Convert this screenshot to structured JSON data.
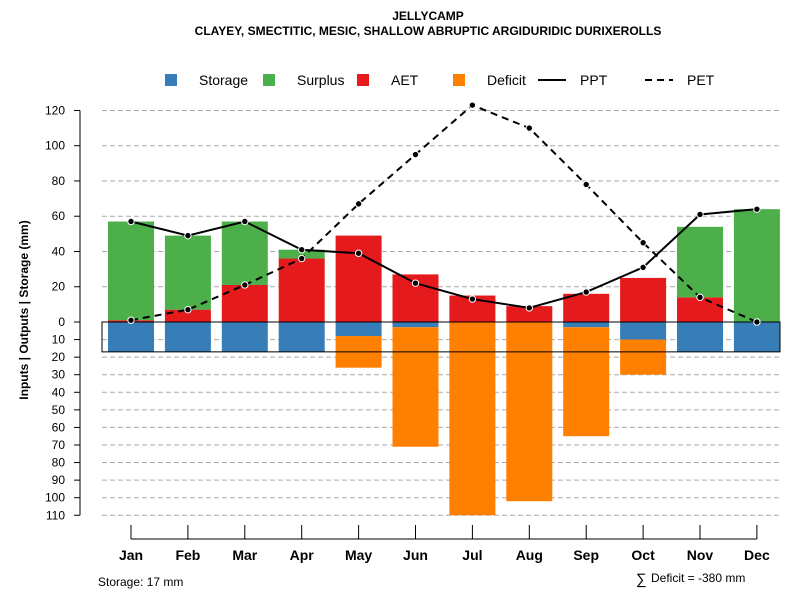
{
  "chart_data": {
    "type": "bar",
    "title": "JELLYCAMP",
    "subtitle": "CLAYEY, SMECTITIC, MESIC, SHALLOW ABRUPTIC ARGIDURIDIC DURIXEROLLS",
    "ylabel": "Inputs | Outputs | Storage    (mm)",
    "categories": [
      "Jan",
      "Feb",
      "Mar",
      "Apr",
      "May",
      "Jun",
      "Jul",
      "Aug",
      "Sep",
      "Oct",
      "Nov",
      "Dec"
    ],
    "y_ticks_up": [
      "0",
      "20",
      "40",
      "60",
      "80",
      "100",
      "120"
    ],
    "y_ticks_down": [
      "10",
      "20",
      "30",
      "40",
      "50",
      "60",
      "70",
      "80",
      "90",
      "100",
      "110"
    ],
    "ylim_up": [
      0,
      130
    ],
    "ylim_down": [
      0,
      110
    ],
    "grid": true,
    "legend": [
      {
        "label": "Storage",
        "kind": "box",
        "color": "#377EB8"
      },
      {
        "label": "Surplus",
        "kind": "box",
        "color": "#4DAF4A"
      },
      {
        "label": "AET",
        "kind": "box",
        "color": "#E41A1C"
      },
      {
        "label": "Deficit",
        "kind": "box",
        "color": "#FF7F00"
      },
      {
        "label": "PPT",
        "kind": "solid-line",
        "color": "#000000"
      },
      {
        "label": "PET",
        "kind": "dashed-line",
        "color": "#000000"
      }
    ],
    "colors": {
      "storage": "#377EB8",
      "surplus": "#4DAF4A",
      "aet": "#E41A1C",
      "deficit": "#FF7F00"
    },
    "series": [
      {
        "name": "AET",
        "values": [
          1,
          7,
          21,
          36,
          49,
          27,
          15,
          9,
          16,
          25,
          14,
          0
        ]
      },
      {
        "name": "Surplus",
        "values": [
          56,
          42,
          36,
          5,
          0,
          0,
          0,
          0,
          0,
          0,
          40,
          64
        ]
      },
      {
        "name": "Storage",
        "values": [
          17,
          17,
          17,
          17,
          8,
          3,
          0,
          0,
          3,
          10,
          17,
          17
        ]
      },
      {
        "name": "Deficit",
        "values": [
          0,
          0,
          0,
          0,
          18,
          68,
          110,
          102,
          62,
          20,
          0,
          0
        ]
      },
      {
        "name": "PPT",
        "values": [
          57,
          49,
          57,
          41,
          39,
          22,
          13,
          8,
          17,
          31,
          61,
          64
        ]
      },
      {
        "name": "PET",
        "values": [
          1,
          7,
          21,
          36,
          67,
          95,
          123,
          110,
          78,
          45,
          14,
          0
        ]
      }
    ],
    "storage_capacity": 17,
    "annotations": {
      "storage_note": "Storage: 17 mm",
      "deficit_symbol": "∑",
      "deficit_note": "Deficit = -380 mm"
    }
  }
}
